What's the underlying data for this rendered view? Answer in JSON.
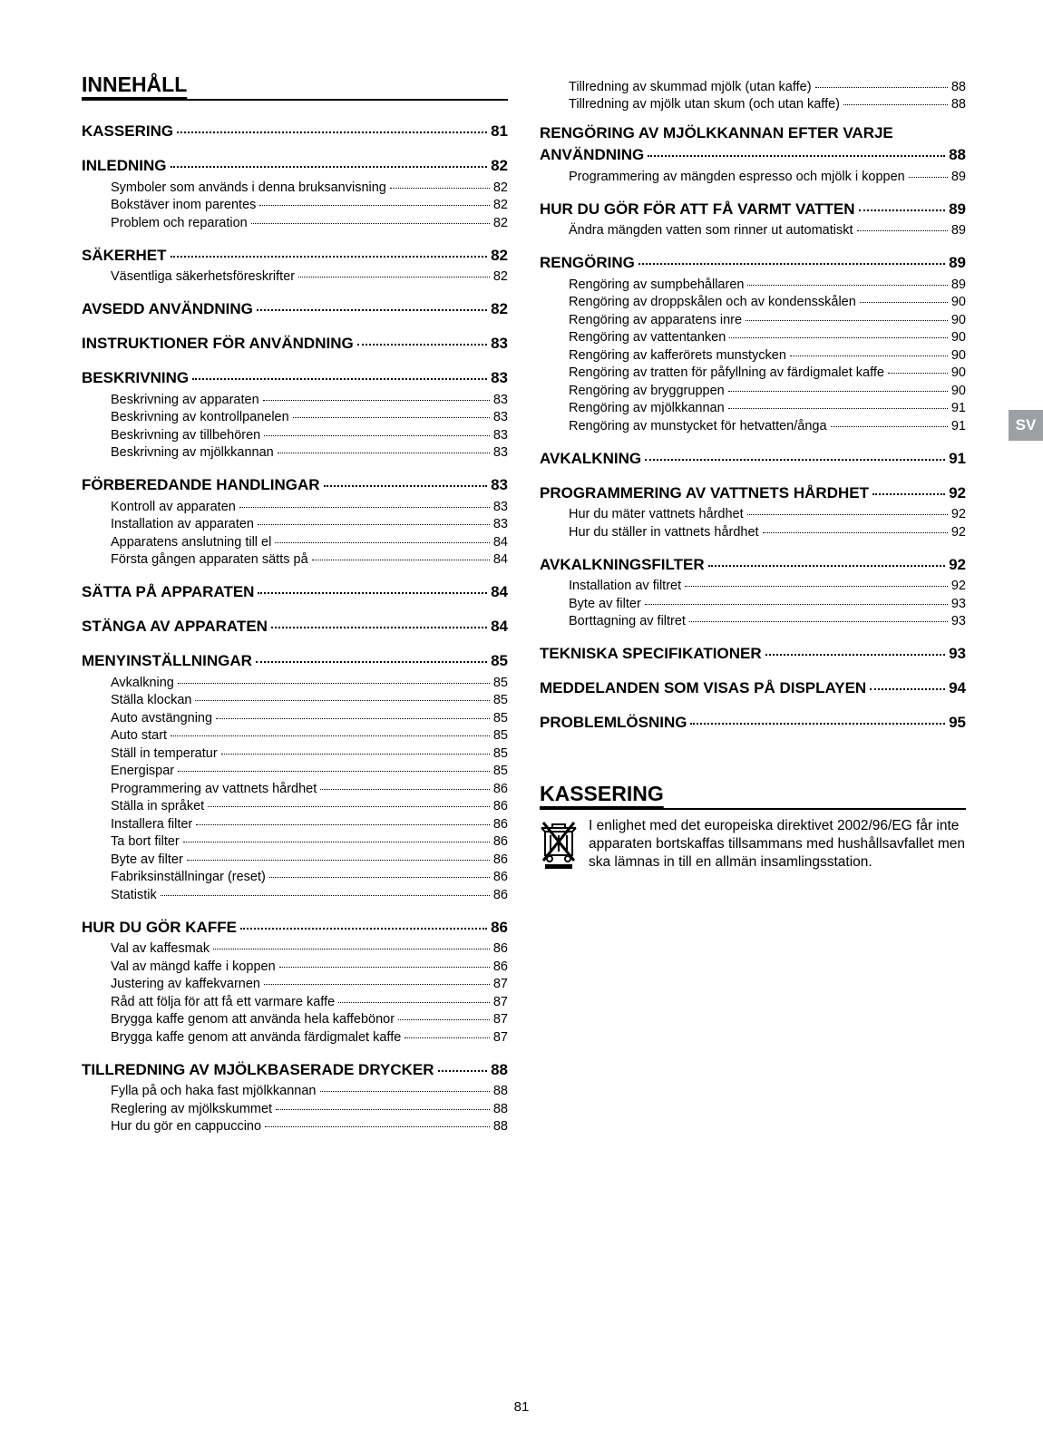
{
  "page_number": "81",
  "lang_tab": "SV",
  "main_title": "INNEHÅLL",
  "left": [
    {
      "type": "h",
      "label": "KASSERING",
      "page": "81"
    },
    {
      "type": "h",
      "label": "INLEDNING",
      "page": "82",
      "subs": [
        {
          "label": "Symboler som används i denna bruksanvisning",
          "page": "82"
        },
        {
          "label": "Bokstäver inom parentes",
          "page": "82"
        },
        {
          "label": "Problem och reparation",
          "page": "82"
        }
      ]
    },
    {
      "type": "h",
      "label": "SÄKERHET",
      "page": "82",
      "subs": [
        {
          "label": "Väsentliga säkerhetsföreskrifter",
          "page": "82"
        }
      ]
    },
    {
      "type": "h",
      "label": "AVSEDD ANVÄNDNING",
      "page": "82"
    },
    {
      "type": "h",
      "label": "INSTRUKTIONER FÖR ANVÄNDNING",
      "page": "83"
    },
    {
      "type": "h",
      "label": "BESKRIVNING",
      "page": "83",
      "subs": [
        {
          "label": "Beskrivning av apparaten",
          "page": "83"
        },
        {
          "label": "Beskrivning av kontrollpanelen",
          "page": "83"
        },
        {
          "label": "Beskrivning av tillbehören",
          "page": "83"
        },
        {
          "label": "Beskrivning av mjölkkannan",
          "page": "83"
        }
      ]
    },
    {
      "type": "h",
      "label": "FÖRBEREDANDE HANDLINGAR",
      "page": "83",
      "subs": [
        {
          "label": "Kontroll av apparaten",
          "page": "83"
        },
        {
          "label": "Installation av apparaten",
          "page": "83"
        },
        {
          "label": "Apparatens anslutning till el",
          "page": "84"
        },
        {
          "label": "Första gången apparaten sätts på",
          "page": "84"
        }
      ]
    },
    {
      "type": "h",
      "label": "SÄTTA PÅ APPARATEN",
      "page": "84"
    },
    {
      "type": "h",
      "label": "STÄNGA AV APPARATEN",
      "page": "84"
    },
    {
      "type": "h",
      "label": "MENYINSTÄLLNINGAR",
      "page": "85",
      "subs": [
        {
          "label": "Avkalkning",
          "page": "85"
        },
        {
          "label": "Ställa klockan",
          "page": "85"
        },
        {
          "label": "Auto avstängning",
          "page": "85"
        },
        {
          "label": "Auto start",
          "page": "85"
        },
        {
          "label": "Ställ in temperatur",
          "page": "85"
        },
        {
          "label": "Energispar",
          "page": "85"
        },
        {
          "label": "Programmering av vattnets hårdhet",
          "page": "86"
        },
        {
          "label": "Ställa in språket",
          "page": "86"
        },
        {
          "label": "Installera filter",
          "page": "86"
        },
        {
          "label": "Ta bort filter",
          "page": "86"
        },
        {
          "label": "Byte av filter",
          "page": "86"
        },
        {
          "label": "Fabriksinställningar (reset)",
          "page": "86"
        },
        {
          "label": "Statistik",
          "page": "86"
        }
      ]
    },
    {
      "type": "h",
      "label": "HUR DU GÖR KAFFE",
      "page": "86",
      "subs": [
        {
          "label": "Val av kaffesmak",
          "page": "86"
        },
        {
          "label": "Val av mängd kaffe i koppen",
          "page": "86"
        },
        {
          "label": "Justering av kaffekvarnen",
          "page": "87"
        },
        {
          "label": "Råd att följa för att få ett varmare kaffe",
          "page": "87"
        },
        {
          "label": "Brygga kaffe genom att använda hela kaffebönor",
          "page": "87"
        },
        {
          "label": "Brygga kaffe genom att använda färdigmalet kaffe",
          "page": "87"
        }
      ]
    },
    {
      "type": "h",
      "label": "TILLREDNING AV MJÖLKBASERADE DRYCKER",
      "page": "88",
      "subs": [
        {
          "label": "Fylla på och haka fast mjölkkannan",
          "page": "88"
        },
        {
          "label": "Reglering av mjölkskummet",
          "page": "88"
        },
        {
          "label": "Hur du gör en cappuccino",
          "page": "88"
        }
      ]
    }
  ],
  "right_prelude_subs": [
    {
      "label": "Tillredning av skummad mjölk (utan kaffe)",
      "page": "88"
    },
    {
      "label": "Tillredning av mjölk utan skum (och utan kaffe)",
      "page": "88"
    }
  ],
  "right": [
    {
      "type": "h",
      "label": "RENGÖRING AV MJÖLKKANNAN EFTER VARJE ANVÄNDNING",
      "page": "88",
      "multiline": true,
      "subs": [
        {
          "label": "Programmering av mängden espresso och mjölk i koppen",
          "page": "89"
        }
      ]
    },
    {
      "type": "h",
      "label": "HUR DU GÖR FÖR ATT FÅ VARMT VATTEN",
      "page": "89",
      "subs": [
        {
          "label": "Ändra mängden vatten som rinner ut automatiskt",
          "page": "89"
        }
      ]
    },
    {
      "type": "h",
      "label": "RENGÖRING",
      "page": "89",
      "subs": [
        {
          "label": "Rengöring av sumpbehållaren",
          "page": "89"
        },
        {
          "label": "Rengöring av droppskålen och av kondensskålen",
          "page": "90"
        },
        {
          "label": "Rengöring av apparatens inre",
          "page": "90"
        },
        {
          "label": "Rengöring av vattentanken",
          "page": "90"
        },
        {
          "label": "Rengöring av kafferörets munstycken",
          "page": "90"
        },
        {
          "label": "Rengöring av tratten för påfyllning av färdigmalet kaffe",
          "page": "90"
        },
        {
          "label": "Rengöring av bryggruppen",
          "page": "90"
        },
        {
          "label": "Rengöring av mjölkkannan",
          "page": "91"
        },
        {
          "label": "Rengöring av munstycket för hetvatten/ånga",
          "page": "91"
        }
      ]
    },
    {
      "type": "h",
      "label": "AVKALKNING",
      "page": "91"
    },
    {
      "type": "h",
      "label": "PROGRAMMERING AV VATTNETS HÅRDHET",
      "page": "92",
      "subs": [
        {
          "label": "Hur du mäter vattnets hårdhet",
          "page": "92"
        },
        {
          "label": "Hur du ställer in vattnets hårdhet",
          "page": "92"
        }
      ]
    },
    {
      "type": "h",
      "label": "AVKALKNINGSFILTER",
      "page": "92",
      "subs": [
        {
          "label": "Installation av filtret",
          "page": "92"
        },
        {
          "label": "Byte av filter",
          "page": "93"
        },
        {
          "label": "Borttagning av filtret",
          "page": "93"
        }
      ]
    },
    {
      "type": "h",
      "label": "TEKNISKA SPECIFIKATIONER",
      "page": "93"
    },
    {
      "type": "h",
      "label": "MEDDELANDEN SOM VISAS PÅ DISPLAYEN",
      "page": "94"
    },
    {
      "type": "h",
      "label": "PROBLEMLÖSNING",
      "page": "95"
    }
  ],
  "kassering": {
    "title": "KASSERING",
    "body": "I enlighet med det europeiska direktivet 2002/96/EG får inte apparaten bortskaffas tillsammans med hushållsavfallet men ska lämnas in till en allmän insamlingsstation."
  }
}
